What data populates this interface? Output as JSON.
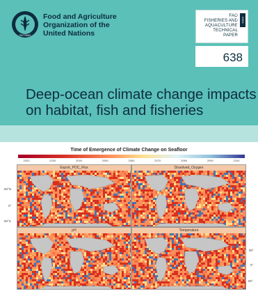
{
  "publisher": {
    "name_lines": [
      "Food and Agriculture",
      "Organization of the",
      "United Nations"
    ],
    "logo_icon": "fao-emblem-icon",
    "logo_text": "FIAT PANIS"
  },
  "series": {
    "lines": [
      "FAO",
      "FISHERIES AND",
      "AQUACULTURE",
      "TECHNICAL",
      "PAPER"
    ],
    "vertical_tag": "ISSN 2070-7010",
    "number": "638"
  },
  "title": {
    "lines": [
      "Deep-ocean climate change impacts",
      "on habitat, fish and fisheries"
    ]
  },
  "figure": {
    "title": "Time of Emergence of Climate Change on Seafloor",
    "colorbar_ticks": [
      "2020",
      "2030",
      "2040",
      "2050",
      "2060",
      "2070",
      "2080",
      "2090",
      "2100"
    ],
    "panels": [
      "Export_POC_Flux",
      "Dissolved_Oxygen",
      "pH",
      "Temperature"
    ],
    "top_axis": [
      "100°W",
      "0°",
      "100°E"
    ],
    "left_axis": [
      "50°N",
      "0°",
      "50°S"
    ],
    "right_axis": [
      "50°",
      "0°",
      "50°"
    ],
    "colors": {
      "teal": "#5bc0b8",
      "band": "#b7e3de",
      "navy": "#0d2d3f",
      "land": "#c6c6c6",
      "red": "#d7301f",
      "orange": "#fc8d59",
      "yellow": "#fee090",
      "blue": "#4575b4"
    }
  }
}
